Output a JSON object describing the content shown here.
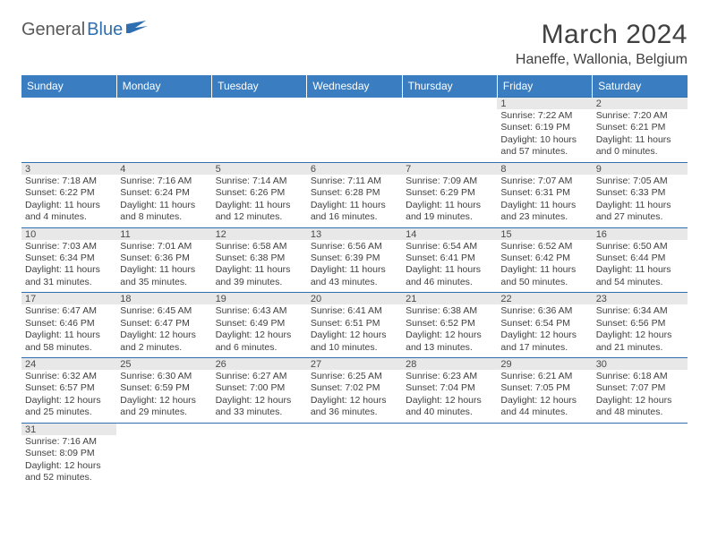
{
  "logo": {
    "part1": "General",
    "part2": "Blue"
  },
  "title": "March 2024",
  "location": "Haneffe, Wallonia, Belgium",
  "colors": {
    "header_bg": "#3a7ec1",
    "header_text": "#ffffff",
    "rule": "#2f6fb0",
    "daynum_bg": "#e8e8e8",
    "body_text": "#3f3f3f",
    "title_text": "#404040",
    "logo_gray": "#595959",
    "logo_blue": "#2f6fb0"
  },
  "day_headers": [
    "Sunday",
    "Monday",
    "Tuesday",
    "Wednesday",
    "Thursday",
    "Friday",
    "Saturday"
  ],
  "weeks": [
    [
      null,
      null,
      null,
      null,
      null,
      {
        "num": "1",
        "sunrise": "Sunrise: 7:22 AM",
        "sunset": "Sunset: 6:19 PM",
        "daylight": "Daylight: 10 hours and 57 minutes."
      },
      {
        "num": "2",
        "sunrise": "Sunrise: 7:20 AM",
        "sunset": "Sunset: 6:21 PM",
        "daylight": "Daylight: 11 hours and 0 minutes."
      }
    ],
    [
      {
        "num": "3",
        "sunrise": "Sunrise: 7:18 AM",
        "sunset": "Sunset: 6:22 PM",
        "daylight": "Daylight: 11 hours and 4 minutes."
      },
      {
        "num": "4",
        "sunrise": "Sunrise: 7:16 AM",
        "sunset": "Sunset: 6:24 PM",
        "daylight": "Daylight: 11 hours and 8 minutes."
      },
      {
        "num": "5",
        "sunrise": "Sunrise: 7:14 AM",
        "sunset": "Sunset: 6:26 PM",
        "daylight": "Daylight: 11 hours and 12 minutes."
      },
      {
        "num": "6",
        "sunrise": "Sunrise: 7:11 AM",
        "sunset": "Sunset: 6:28 PM",
        "daylight": "Daylight: 11 hours and 16 minutes."
      },
      {
        "num": "7",
        "sunrise": "Sunrise: 7:09 AM",
        "sunset": "Sunset: 6:29 PM",
        "daylight": "Daylight: 11 hours and 19 minutes."
      },
      {
        "num": "8",
        "sunrise": "Sunrise: 7:07 AM",
        "sunset": "Sunset: 6:31 PM",
        "daylight": "Daylight: 11 hours and 23 minutes."
      },
      {
        "num": "9",
        "sunrise": "Sunrise: 7:05 AM",
        "sunset": "Sunset: 6:33 PM",
        "daylight": "Daylight: 11 hours and 27 minutes."
      }
    ],
    [
      {
        "num": "10",
        "sunrise": "Sunrise: 7:03 AM",
        "sunset": "Sunset: 6:34 PM",
        "daylight": "Daylight: 11 hours and 31 minutes."
      },
      {
        "num": "11",
        "sunrise": "Sunrise: 7:01 AM",
        "sunset": "Sunset: 6:36 PM",
        "daylight": "Daylight: 11 hours and 35 minutes."
      },
      {
        "num": "12",
        "sunrise": "Sunrise: 6:58 AM",
        "sunset": "Sunset: 6:38 PM",
        "daylight": "Daylight: 11 hours and 39 minutes."
      },
      {
        "num": "13",
        "sunrise": "Sunrise: 6:56 AM",
        "sunset": "Sunset: 6:39 PM",
        "daylight": "Daylight: 11 hours and 43 minutes."
      },
      {
        "num": "14",
        "sunrise": "Sunrise: 6:54 AM",
        "sunset": "Sunset: 6:41 PM",
        "daylight": "Daylight: 11 hours and 46 minutes."
      },
      {
        "num": "15",
        "sunrise": "Sunrise: 6:52 AM",
        "sunset": "Sunset: 6:42 PM",
        "daylight": "Daylight: 11 hours and 50 minutes."
      },
      {
        "num": "16",
        "sunrise": "Sunrise: 6:50 AM",
        "sunset": "Sunset: 6:44 PM",
        "daylight": "Daylight: 11 hours and 54 minutes."
      }
    ],
    [
      {
        "num": "17",
        "sunrise": "Sunrise: 6:47 AM",
        "sunset": "Sunset: 6:46 PM",
        "daylight": "Daylight: 11 hours and 58 minutes."
      },
      {
        "num": "18",
        "sunrise": "Sunrise: 6:45 AM",
        "sunset": "Sunset: 6:47 PM",
        "daylight": "Daylight: 12 hours and 2 minutes."
      },
      {
        "num": "19",
        "sunrise": "Sunrise: 6:43 AM",
        "sunset": "Sunset: 6:49 PM",
        "daylight": "Daylight: 12 hours and 6 minutes."
      },
      {
        "num": "20",
        "sunrise": "Sunrise: 6:41 AM",
        "sunset": "Sunset: 6:51 PM",
        "daylight": "Daylight: 12 hours and 10 minutes."
      },
      {
        "num": "21",
        "sunrise": "Sunrise: 6:38 AM",
        "sunset": "Sunset: 6:52 PM",
        "daylight": "Daylight: 12 hours and 13 minutes."
      },
      {
        "num": "22",
        "sunrise": "Sunrise: 6:36 AM",
        "sunset": "Sunset: 6:54 PM",
        "daylight": "Daylight: 12 hours and 17 minutes."
      },
      {
        "num": "23",
        "sunrise": "Sunrise: 6:34 AM",
        "sunset": "Sunset: 6:56 PM",
        "daylight": "Daylight: 12 hours and 21 minutes."
      }
    ],
    [
      {
        "num": "24",
        "sunrise": "Sunrise: 6:32 AM",
        "sunset": "Sunset: 6:57 PM",
        "daylight": "Daylight: 12 hours and 25 minutes."
      },
      {
        "num": "25",
        "sunrise": "Sunrise: 6:30 AM",
        "sunset": "Sunset: 6:59 PM",
        "daylight": "Daylight: 12 hours and 29 minutes."
      },
      {
        "num": "26",
        "sunrise": "Sunrise: 6:27 AM",
        "sunset": "Sunset: 7:00 PM",
        "daylight": "Daylight: 12 hours and 33 minutes."
      },
      {
        "num": "27",
        "sunrise": "Sunrise: 6:25 AM",
        "sunset": "Sunset: 7:02 PM",
        "daylight": "Daylight: 12 hours and 36 minutes."
      },
      {
        "num": "28",
        "sunrise": "Sunrise: 6:23 AM",
        "sunset": "Sunset: 7:04 PM",
        "daylight": "Daylight: 12 hours and 40 minutes."
      },
      {
        "num": "29",
        "sunrise": "Sunrise: 6:21 AM",
        "sunset": "Sunset: 7:05 PM",
        "daylight": "Daylight: 12 hours and 44 minutes."
      },
      {
        "num": "30",
        "sunrise": "Sunrise: 6:18 AM",
        "sunset": "Sunset: 7:07 PM",
        "daylight": "Daylight: 12 hours and 48 minutes."
      }
    ],
    [
      {
        "num": "31",
        "sunrise": "Sunrise: 7:16 AM",
        "sunset": "Sunset: 8:09 PM",
        "daylight": "Daylight: 12 hours and 52 minutes."
      },
      null,
      null,
      null,
      null,
      null,
      null
    ]
  ]
}
